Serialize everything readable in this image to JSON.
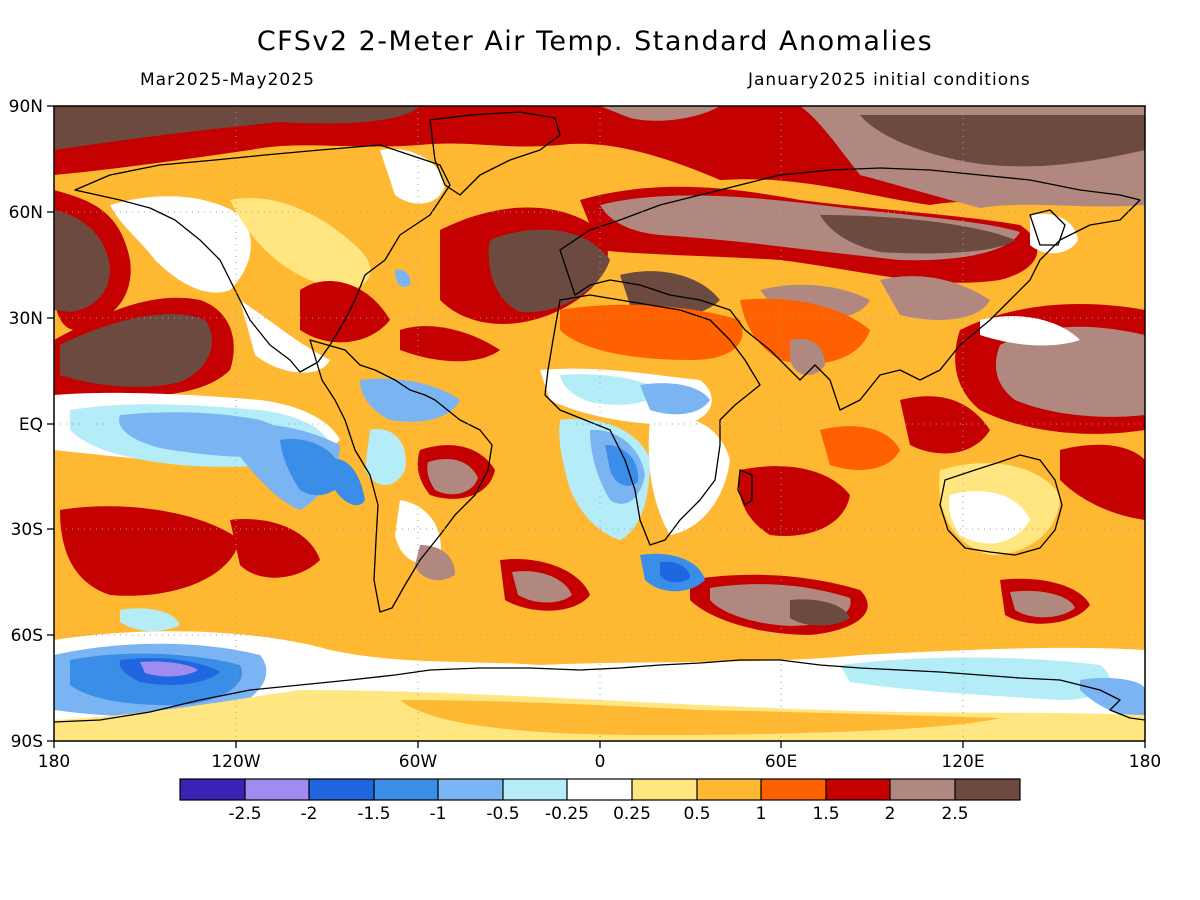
{
  "header": {
    "title": "CFSv2 2-Meter Air Temp. Standard Anomalies",
    "period": "Mar2025-May2025",
    "init": "January2025 initial conditions"
  },
  "axes": {
    "lat_labels": [
      "90N",
      "60N",
      "30N",
      "EQ",
      "30S",
      "60S",
      "90S"
    ],
    "lon_labels": [
      "180",
      "120W",
      "60W",
      "0",
      "60E",
      "120E",
      "180"
    ]
  },
  "colorbar": {
    "colors": [
      "#3b22b4",
      "#a08cf0",
      "#1f66e0",
      "#3a8ee8",
      "#7ab4f2",
      "#b4ecf8",
      "#ffffff",
      "#ffe680",
      "#ffb832",
      "#ff6000",
      "#c40000",
      "#b08880",
      "#6c4a40"
    ],
    "labels": [
      "-2.5",
      "-2",
      "-1.5",
      "-1",
      "-0.5",
      "-0.25",
      "0.25",
      "0.5",
      "1",
      "1.5",
      "2",
      "2.5"
    ]
  },
  "map_colors": {
    "ocean_base": "#ffb832",
    "land_outline": "#000000"
  },
  "chart_data": {
    "type": "heatmap",
    "title": "CFSv2 2-Meter Air Temp. Standard Anomalies",
    "subtitle_left": "Mar2025-May2025",
    "subtitle_right": "January2025 initial conditions",
    "xlim": [
      -180,
      180
    ],
    "ylim": [
      -90,
      90
    ],
    "x_ticks": [
      -180,
      -120,
      -60,
      0,
      60,
      120,
      180
    ],
    "y_ticks": [
      90,
      60,
      30,
      0,
      -30,
      -60,
      -90
    ],
    "levels": [
      -2.5,
      -2,
      -1.5,
      -1,
      -0.5,
      -0.25,
      0.25,
      0.5,
      1,
      1.5,
      2,
      2.5
    ]
  }
}
